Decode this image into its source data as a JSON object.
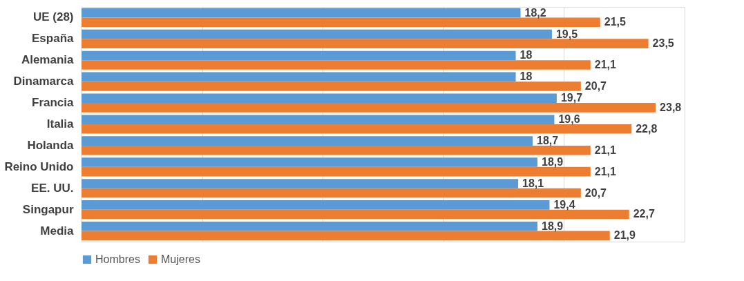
{
  "chart_data": {
    "type": "bar",
    "orientation": "horizontal",
    "categories": [
      "UE (28)",
      "España",
      "Alemania",
      "Dinamarca",
      "Francia",
      "Italia",
      "Holanda",
      "Reino Unido",
      "EE. UU.",
      "Singapur",
      "Media"
    ],
    "series": [
      {
        "name": "Hombres",
        "color": "#5b9bd5",
        "values": [
          18.2,
          19.5,
          18,
          18,
          19.7,
          19.6,
          18.7,
          18.9,
          18.1,
          19.4,
          18.9
        ],
        "value_labels": [
          "18,2",
          "19,5",
          "18",
          "18",
          "19,7",
          "19,6",
          "18,7",
          "18,9",
          "18,1",
          "19,4",
          "18,9"
        ]
      },
      {
        "name": "Mujeres",
        "color": "#ed7d31",
        "values": [
          21.5,
          23.5,
          21.1,
          20.7,
          23.8,
          22.8,
          21.1,
          21.1,
          20.7,
          22.7,
          21.9
        ],
        "value_labels": [
          "21,5",
          "23,5",
          "21,1",
          "20,7",
          "23,8",
          "22,8",
          "21,1",
          "21,1",
          "20,7",
          "22,7",
          "21,9"
        ]
      }
    ],
    "xlim": [
      0,
      25
    ],
    "xticks": [
      {
        "value": 0,
        "label": null
      },
      {
        "value": 5,
        "label": null
      },
      {
        "value": 10,
        "label": null
      },
      {
        "value": 15,
        "label": null
      },
      {
        "value": 20,
        "label": null
      },
      {
        "value": 25,
        "label": null
      }
    ],
    "tick_labels": "y",
    "grid": "x",
    "legend": "bottom"
  }
}
